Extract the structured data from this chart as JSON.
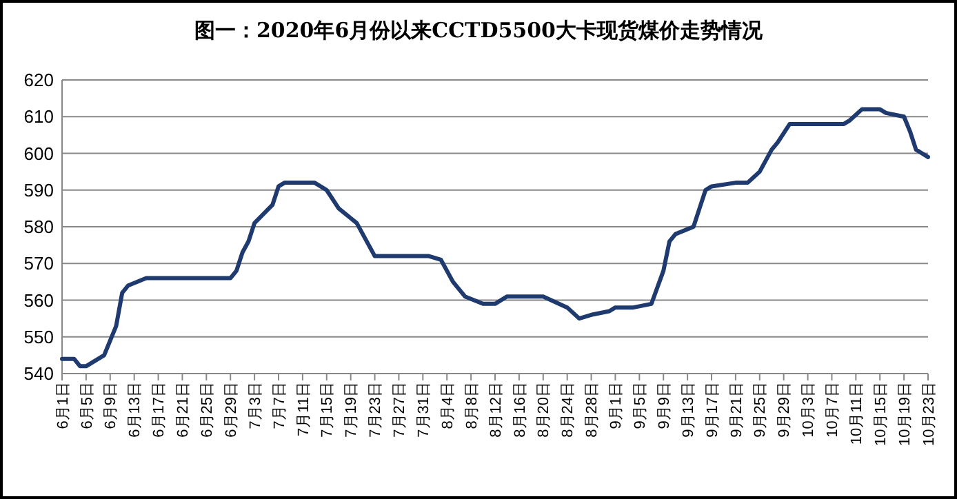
{
  "chart_data": {
    "type": "line",
    "title": "图一：2020年6月份以来CCTD5500大卡现货煤价走势情况",
    "series": [
      {
        "color": "#1f3a6e",
        "x": [
          "--06-01",
          "--06-03",
          "--06-04",
          "--06-05",
          "--06-08",
          "--06-10",
          "--06-11",
          "--06-12",
          "--06-15",
          "--06-29",
          "--06-30",
          "--07-01",
          "--07-02",
          "--07-03",
          "--07-06",
          "--07-07",
          "--07-08",
          "--07-13",
          "--07-15",
          "--07-17",
          "--07-20",
          "--07-23",
          "--08-01",
          "--08-03",
          "--08-05",
          "--08-07",
          "--08-10",
          "--08-12",
          "--08-14",
          "--08-20",
          "--08-24",
          "--08-26",
          "--08-28",
          "--08-31",
          "--09-01",
          "--09-04",
          "--09-07",
          "--09-09",
          "--09-10",
          "--09-11",
          "--09-14",
          "--09-16",
          "--09-17",
          "--09-21",
          "--09-23",
          "--09-25",
          "--09-27",
          "--09-28",
          "--09-30",
          "--10-09",
          "--10-10",
          "--10-12",
          "--10-15",
          "--10-16",
          "--10-19",
          "--10-20",
          "--10-21",
          "--10-22",
          "--10-23"
        ],
        "values": [
          544,
          544,
          542,
          542,
          545,
          553,
          562,
          564,
          566,
          566,
          568,
          573,
          576,
          581,
          586,
          591,
          592,
          592,
          590,
          585,
          581,
          572,
          572,
          571,
          565,
          561,
          559,
          559,
          561,
          561,
          558,
          555,
          556,
          557,
          558,
          558,
          559,
          568,
          576,
          578,
          580,
          590,
          591,
          592,
          592,
          595,
          601,
          603,
          608,
          608,
          609,
          612,
          612,
          611,
          610,
          606,
          601,
          600,
          599
        ]
      }
    ],
    "xlim": [
      "--06-01",
      "--10-23"
    ],
    "xticks": [
      {
        "value": "--06-01",
        "label": "6月1日"
      },
      {
        "value": "--06-05",
        "label": "6月5日"
      },
      {
        "value": "--06-09",
        "label": "6月9日"
      },
      {
        "value": "--06-13",
        "label": "6月13日"
      },
      {
        "value": "--06-17",
        "label": "6月17日"
      },
      {
        "value": "--06-21",
        "label": "6月21日"
      },
      {
        "value": "--06-25",
        "label": "6月25日"
      },
      {
        "value": "--06-29",
        "label": "6月29日"
      },
      {
        "value": "--07-03",
        "label": "7月3日"
      },
      {
        "value": "--07-07",
        "label": "7月7日"
      },
      {
        "value": "--07-11",
        "label": "7月11日"
      },
      {
        "value": "--07-15",
        "label": "7月15日"
      },
      {
        "value": "--07-19",
        "label": "7月19日"
      },
      {
        "value": "--07-23",
        "label": "7月23日"
      },
      {
        "value": "--07-27",
        "label": "7月27日"
      },
      {
        "value": "--07-31",
        "label": "7月31日"
      },
      {
        "value": "--08-04",
        "label": "8月4日"
      },
      {
        "value": "--08-08",
        "label": "8月8日"
      },
      {
        "value": "--08-12",
        "label": "8月12日"
      },
      {
        "value": "--08-16",
        "label": "8月16日"
      },
      {
        "value": "--08-20",
        "label": "8月20日"
      },
      {
        "value": "--08-24",
        "label": "8月24日"
      },
      {
        "value": "--08-28",
        "label": "8月28日"
      },
      {
        "value": "--09-01",
        "label": "9月1日"
      },
      {
        "value": "--09-05",
        "label": "9月5日"
      },
      {
        "value": "--09-09",
        "label": "9月9日"
      },
      {
        "value": "--09-13",
        "label": "9月13日"
      },
      {
        "value": "--09-17",
        "label": "9月17日"
      },
      {
        "value": "--09-21",
        "label": "9月21日"
      },
      {
        "value": "--09-25",
        "label": "9月25日"
      },
      {
        "value": "--09-29",
        "label": "9月29日"
      },
      {
        "value": "--10-03",
        "label": "10月3日"
      },
      {
        "value": "--10-07",
        "label": "10月7日"
      },
      {
        "value": "--10-11",
        "label": "10月11日"
      },
      {
        "value": "--10-15",
        "label": "10月15日"
      },
      {
        "value": "--10-19",
        "label": "10月19日"
      },
      {
        "value": "--10-23",
        "label": "10月23日"
      }
    ],
    "ylim": [
      540,
      620
    ],
    "yticks": [
      540,
      550,
      560,
      570,
      580,
      590,
      600,
      610,
      620
    ],
    "grid": "y",
    "marker": "none",
    "line_style": "solid"
  }
}
